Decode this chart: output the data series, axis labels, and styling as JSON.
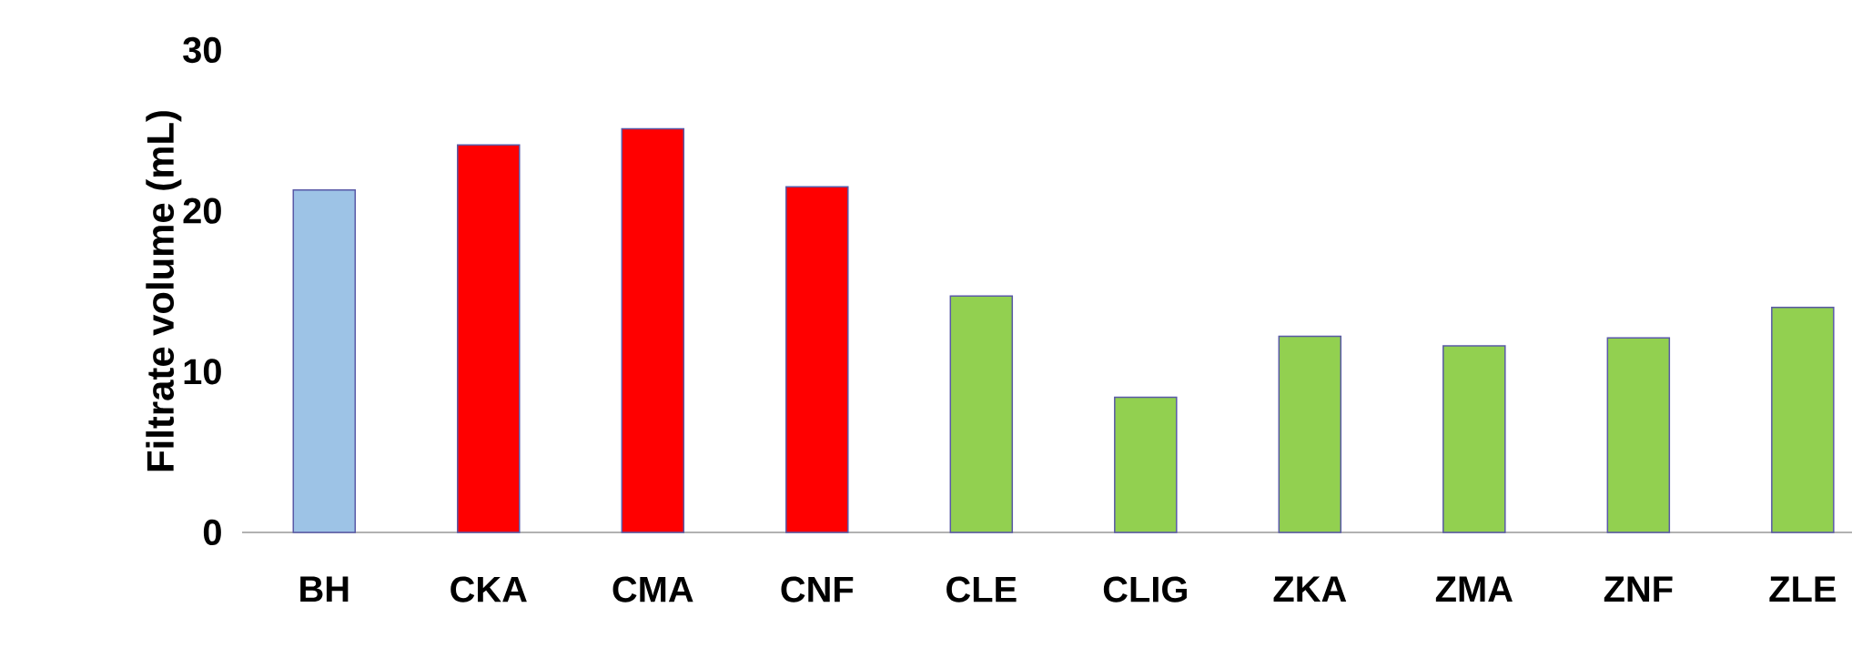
{
  "chart_data": {
    "type": "bar",
    "ylabel": "Filtrate volume (mL)",
    "categories": [
      "BH",
      "CKA",
      "CMA",
      "CNF",
      "CLE",
      "CLIG",
      "ZKA",
      "ZMA",
      "ZNF",
      "ZLE"
    ],
    "values": [
      21.3,
      24.1,
      25.1,
      21.5,
      14.7,
      8.4,
      12.2,
      11.6,
      12.1,
      14.0
    ],
    "colors": [
      "#9dc3e6",
      "#ff0000",
      "#ff0000",
      "#ff0000",
      "#92d050",
      "#92d050",
      "#92d050",
      "#92d050",
      "#92d050",
      "#92d050"
    ],
    "ylim": [
      0,
      30
    ],
    "yticks": [
      0,
      10,
      20,
      30
    ],
    "grid": false
  }
}
